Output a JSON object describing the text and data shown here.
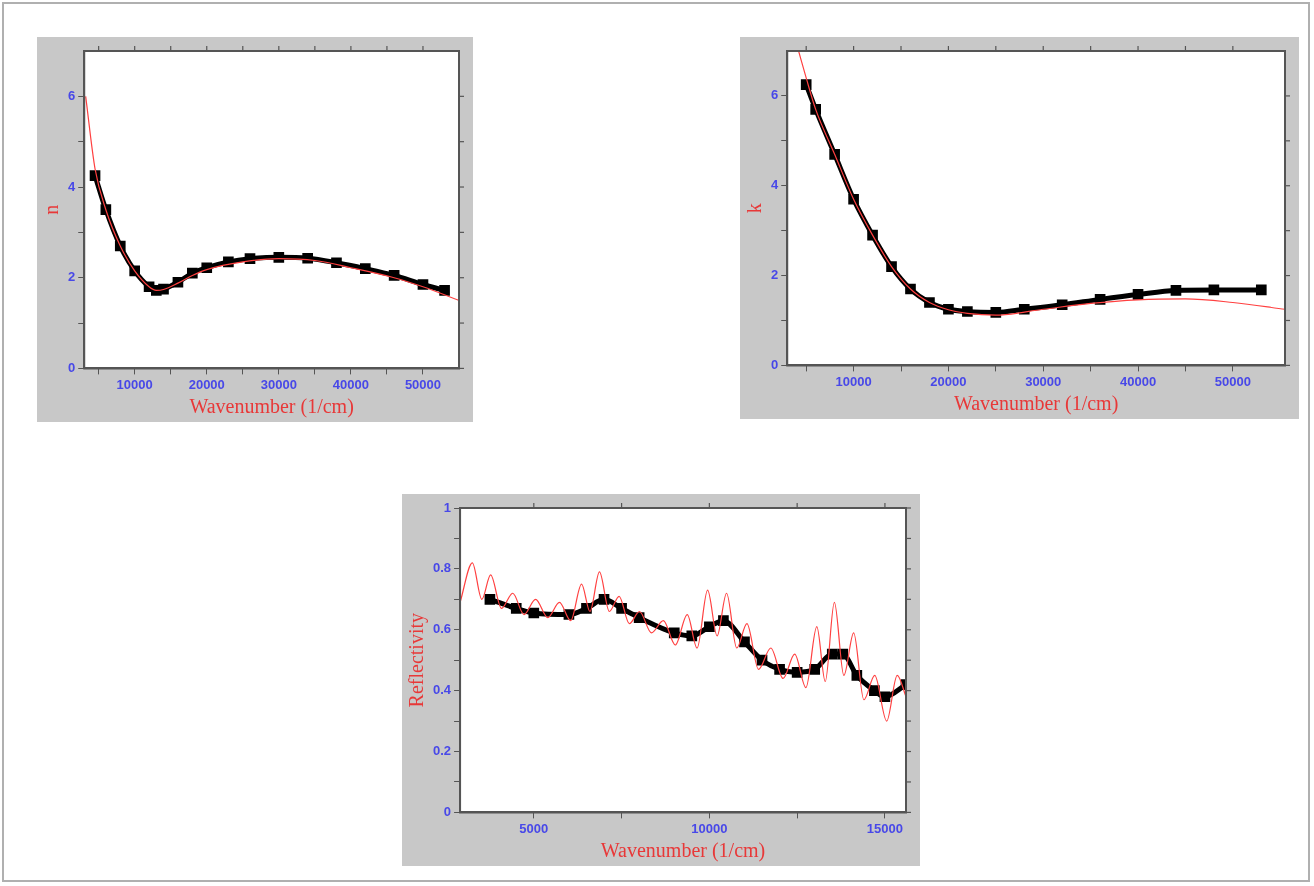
{
  "chart_data": [
    {
      "type": "line",
      "xlabel": "Wavenumber (1/cm)",
      "ylabel": "n",
      "xlim": [
        3000,
        55000
      ],
      "ylim": [
        0,
        7
      ],
      "xticks": [
        {
          "value": 5000,
          "label": null
        },
        10000,
        {
          "value": 15000,
          "label": null
        },
        20000,
        {
          "value": 25000,
          "label": null
        },
        30000,
        {
          "value": 35000,
          "label": null
        },
        40000,
        {
          "value": 45000,
          "label": null
        },
        50000
      ],
      "yticks": [
        0,
        {
          "value": 1,
          "label": null
        },
        2,
        {
          "value": 3,
          "label": null
        },
        4,
        {
          "value": 5,
          "label": null
        },
        6
      ],
      "grid": false,
      "legend": false,
      "series": [
        {
          "color": "#000000",
          "marker": "square",
          "x": [
            4500,
            6000,
            8000,
            10000,
            12000,
            13000,
            14000,
            16000,
            18000,
            20000,
            23000,
            26000,
            30000,
            34000,
            38000,
            42000,
            46000,
            50000,
            53000
          ],
          "values": [
            4.25,
            3.5,
            2.7,
            2.15,
            1.8,
            1.72,
            1.75,
            1.9,
            2.1,
            2.22,
            2.35,
            2.42,
            2.45,
            2.43,
            2.33,
            2.2,
            2.05,
            1.85,
            1.72
          ]
        },
        {
          "color": "#ff4040",
          "marker": "none",
          "x": [
            3200,
            4500,
            6000,
            8000,
            10000,
            12000,
            13000,
            14000,
            16000,
            18000,
            20000,
            25000,
            30000,
            35000,
            40000,
            46000,
            50000,
            55000
          ],
          "values": [
            6.0,
            4.4,
            3.5,
            2.7,
            2.15,
            1.8,
            1.72,
            1.74,
            1.88,
            2.05,
            2.18,
            2.35,
            2.42,
            2.38,
            2.22,
            2.0,
            1.8,
            1.5
          ]
        }
      ]
    },
    {
      "type": "line",
      "xlabel": "Wavenumber (1/cm)",
      "ylabel": "k",
      "xlim": [
        3000,
        55500
      ],
      "ylim": [
        0,
        7
      ],
      "xticks": [
        {
          "value": 5000,
          "label": null
        },
        10000,
        {
          "value": 15000,
          "label": null
        },
        20000,
        {
          "value": 25000,
          "label": null
        },
        30000,
        {
          "value": 35000,
          "label": null
        },
        40000,
        {
          "value": 45000,
          "label": null
        },
        50000
      ],
      "yticks": [
        0,
        {
          "value": 1,
          "label": null
        },
        2,
        {
          "value": 3,
          "label": null
        },
        4,
        {
          "value": 5,
          "label": null
        },
        6
      ],
      "grid": false,
      "legend": false,
      "series": [
        {
          "color": "#000000",
          "marker": "square",
          "x": [
            5000,
            6000,
            8000,
            10000,
            12000,
            14000,
            16000,
            18000,
            20000,
            22000,
            25000,
            28000,
            32000,
            36000,
            40000,
            44000,
            48000,
            53000
          ],
          "values": [
            6.25,
            5.7,
            4.7,
            3.7,
            2.9,
            2.2,
            1.7,
            1.4,
            1.25,
            1.2,
            1.18,
            1.25,
            1.35,
            1.47,
            1.58,
            1.67,
            1.68,
            1.68
          ]
        },
        {
          "color": "#ff4040",
          "marker": "none",
          "x": [
            4200,
            5000,
            6000,
            8000,
            10000,
            12000,
            14000,
            16000,
            18000,
            20000,
            22000,
            25000,
            30000,
            35000,
            40000,
            45000,
            50000,
            55500
          ],
          "values": [
            7.0,
            6.4,
            5.7,
            4.7,
            3.7,
            2.9,
            2.2,
            1.7,
            1.4,
            1.24,
            1.16,
            1.12,
            1.25,
            1.38,
            1.46,
            1.48,
            1.4,
            1.25
          ]
        }
      ]
    },
    {
      "type": "line",
      "xlabel": "Wavenumber (1/cm)",
      "ylabel": "Reflectivity",
      "xlim": [
        2900,
        15600
      ],
      "ylim": [
        0,
        1
      ],
      "xticks": [
        5000,
        {
          "value": 7500,
          "label": null
        },
        10000,
        {
          "value": 12500,
          "label": null
        },
        15000
      ],
      "yticks": [
        0,
        {
          "value": 0.1,
          "label": null
        },
        0.2,
        {
          "value": 0.3,
          "label": null
        },
        0.4,
        {
          "value": 0.5,
          "label": null
        },
        0.6,
        {
          "value": 0.7,
          "label": null
        },
        0.8,
        {
          "value": 0.9,
          "label": null
        },
        1
      ],
      "grid": false,
      "legend": false,
      "series": [
        {
          "color": "#000000",
          "marker": "square",
          "x": [
            3750,
            4500,
            5000,
            6000,
            6500,
            7000,
            7500,
            8000,
            9000,
            9500,
            10000,
            10400,
            11000,
            11500,
            12000,
            12500,
            13000,
            13500,
            13800,
            14200,
            14700,
            15000,
            15600
          ],
          "values": [
            0.7,
            0.67,
            0.655,
            0.65,
            0.67,
            0.7,
            0.67,
            0.64,
            0.59,
            0.58,
            0.61,
            0.63,
            0.56,
            0.5,
            0.47,
            0.46,
            0.47,
            0.52,
            0.52,
            0.45,
            0.4,
            0.38,
            0.42
          ]
        },
        {
          "color": "#ff4040",
          "marker": "none",
          "x": [
            2900,
            3250,
            3520,
            3770,
            4080,
            4400,
            4720,
            5050,
            5400,
            5730,
            6050,
            6360,
            6600,
            6870,
            7150,
            7430,
            7720,
            8010,
            8350,
            8690,
            9030,
            9370,
            9650,
            9950,
            10220,
            10490,
            10780,
            11070,
            11400,
            11750,
            12100,
            12430,
            12750,
            13060,
            13300,
            13560,
            13830,
            14110,
            14400,
            14710,
            15050,
            15350,
            15600
          ],
          "values": [
            0.69,
            0.82,
            0.7,
            0.78,
            0.67,
            0.72,
            0.65,
            0.7,
            0.64,
            0.69,
            0.63,
            0.75,
            0.66,
            0.79,
            0.66,
            0.71,
            0.62,
            0.66,
            0.59,
            0.63,
            0.55,
            0.65,
            0.54,
            0.73,
            0.58,
            0.72,
            0.54,
            0.62,
            0.47,
            0.54,
            0.44,
            0.52,
            0.41,
            0.61,
            0.43,
            0.69,
            0.45,
            0.59,
            0.37,
            0.45,
            0.3,
            0.45,
            0.38
          ]
        }
      ]
    }
  ]
}
